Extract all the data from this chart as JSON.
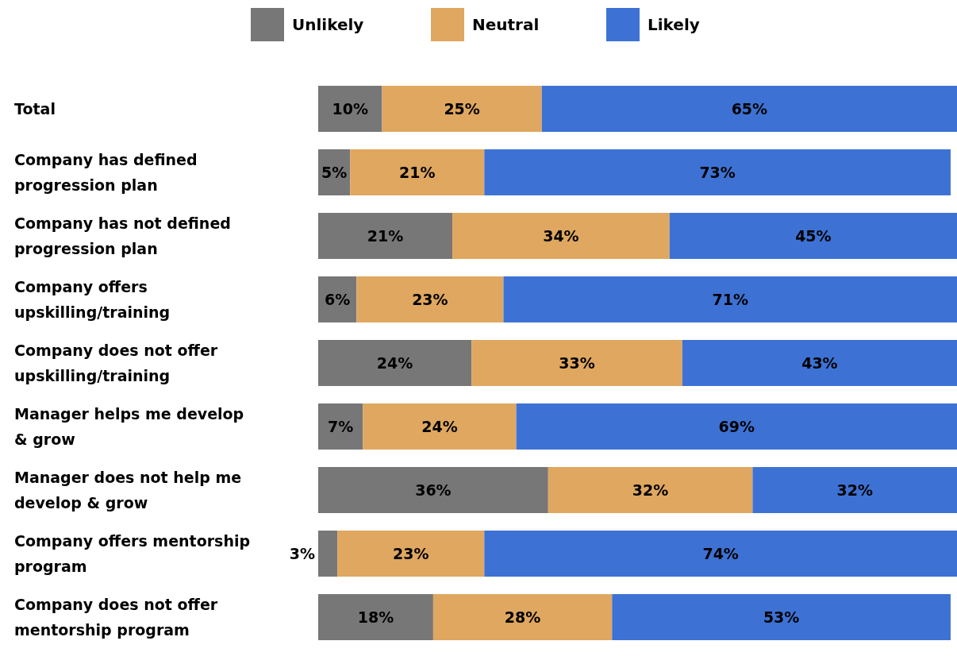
{
  "chart_data": {
    "type": "bar",
    "orientation": "horizontal",
    "stacked": true,
    "legend": "top",
    "grid": false,
    "categories": [
      "Total",
      "Company has defined progression plan",
      "Company has not defined progression plan",
      "Company offers upskilling/training",
      "Company does not offer upskilling/training",
      "Manager helps me develop & grow",
      "Manager does not help me develop & grow",
      "Company offers mentorship program",
      "Company does not offer mentorship program"
    ],
    "series": [
      {
        "name": "Unlikely",
        "color": "#777777",
        "values": [
          10,
          5,
          21,
          6,
          24,
          7,
          36,
          3,
          18
        ],
        "value_labels": [
          "10%",
          "5%",
          "21%",
          "6%",
          "24%",
          "7%",
          "36%",
          "3%",
          "18%"
        ]
      },
      {
        "name": "Neutral",
        "color": "#dfa760",
        "values": [
          25,
          21,
          34,
          23,
          33,
          24,
          32,
          23,
          28
        ],
        "value_labels": [
          "25%",
          "21%",
          "34%",
          "23%",
          "33%",
          "24%",
          "32%",
          "23%",
          "28%"
        ]
      },
      {
        "name": "Likely",
        "color": "#3d72d4",
        "values": [
          65,
          73,
          45,
          71,
          43,
          69,
          32,
          74,
          53
        ],
        "value_labels": [
          "65%",
          "73%",
          "45%",
          "71%",
          "43%",
          "69%",
          "32%",
          "74%",
          "53%"
        ]
      }
    ]
  }
}
